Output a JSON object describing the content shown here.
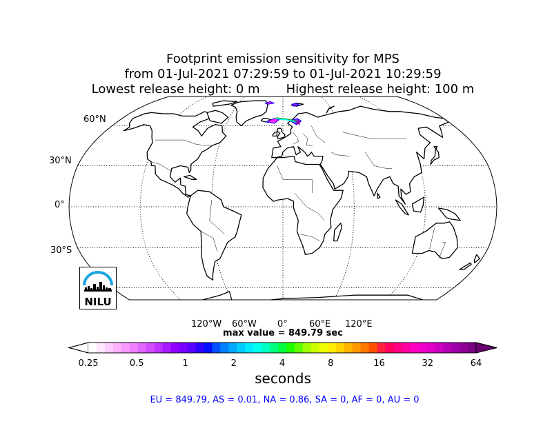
{
  "title": {
    "line1": "Footprint emission sensitivity for MPS",
    "line2": "from 01-Jul-2021 07:29:59 to 01-Jul-2021 10:29:59",
    "line3_left": "Lowest release height: 0 m",
    "line3_right": "Highest release height: 100 m"
  },
  "map": {
    "projection": "robinson",
    "lat_labels": [
      "60°N",
      "30°N",
      "0°",
      "30°S"
    ],
    "lon_labels": [
      "120°W",
      "60°W",
      "0°",
      "60°E",
      "120°E"
    ],
    "gridlines": "dotted",
    "plume_region": "North Atlantic / Norwegian Sea",
    "plume_colors": [
      "#ff00ff",
      "#7f00ff",
      "#0000ff",
      "#00ffff"
    ]
  },
  "max_value": "max value = 849.79 sec",
  "colorbar": {
    "ticks": [
      "0.25",
      "0.5",
      "1",
      "2",
      "4",
      "8",
      "16",
      "32",
      "64"
    ],
    "scale": "log2",
    "units": "seconds",
    "colors": [
      "#ffffff",
      "#ffe6ff",
      "#ffccff",
      "#ffb3ff",
      "#f799ff",
      "#ee80ff",
      "#e066ff",
      "#d24dff",
      "#c033ff",
      "#a81aff",
      "#9000ff",
      "#7800ff",
      "#5a00ff",
      "#3000ff",
      "#0010ff",
      "#0050ff",
      "#0080ff",
      "#00a8ff",
      "#00ccff",
      "#00eaff",
      "#00ffee",
      "#00ffc0",
      "#00ff80",
      "#00ff40",
      "#20ff00",
      "#60ff00",
      "#a0ff00",
      "#ccff00",
      "#eeff00",
      "#ffee00",
      "#ffd200",
      "#ffb400",
      "#ff9600",
      "#ff7800",
      "#ff5000",
      "#ff2040",
      "#ff0060",
      "#ff0080",
      "#ff00a0",
      "#ff00c0",
      "#f000c8",
      "#e000c8",
      "#cc00c0",
      "#b400b4",
      "#a000a8",
      "#8c0096",
      "#780082"
    ]
  },
  "regions": "EU = 849.79,  AS = 0.01,  NA = 0.86,  SA = 0,  AF = 0,  AU = 0",
  "logo": {
    "text": "NILU",
    "colors": {
      "arc": "#1aa3e0",
      "buildings": "#000000"
    }
  }
}
